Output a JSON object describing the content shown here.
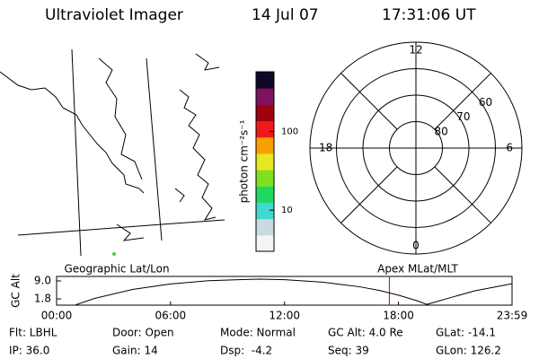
{
  "header": {
    "title": "Ultraviolet Imager",
    "date": "14 Jul 07",
    "time": "17:31:06 UT"
  },
  "chart_data": [
    {
      "type": "colorbar",
      "ylabel": "photon cm⁻²s⁻¹",
      "log": true,
      "ylim": [
        3,
        575
      ],
      "yticks": [
        10,
        100
      ],
      "colors": [
        "#f4f4f4",
        "#c8dce0",
        "#40d8d0",
        "#20d860",
        "#80e020",
        "#e8e820",
        "#f8a000",
        "#f01818",
        "#a00010",
        "#801060",
        "#100828"
      ]
    },
    {
      "type": "polar",
      "rlim": [
        90,
        50
      ],
      "rticks": [
        80,
        70,
        60
      ],
      "thetalim": [
        0,
        24
      ],
      "thetaticks": [
        0,
        6,
        12,
        18
      ]
    },
    {
      "type": "line",
      "ylabel": "GC Alt",
      "annotations": [
        "Geographic Lat/Lon",
        "Apex MLat/MLT"
      ],
      "xlim": [
        0,
        23.98
      ],
      "ylim": [
        -0.7,
        10.8
      ],
      "xticks": [
        {
          "value": 0,
          "label": "00:00"
        },
        {
          "value": 6,
          "label": "06:00"
        },
        {
          "value": 12,
          "label": "12:00"
        },
        {
          "value": 18,
          "label": "18:00"
        },
        {
          "value": 23.98,
          "label": "23:59"
        }
      ],
      "yticks": [
        {
          "value": 9,
          "label": "9.0"
        },
        1.8
      ],
      "x": [
        1,
        2,
        4,
        6,
        8,
        10,
        10.7,
        12,
        14,
        16,
        17,
        18,
        19,
        19.5,
        20.5,
        22,
        23.98
      ],
      "values": [
        -0.6,
        2.0,
        5.6,
        7.8,
        9.1,
        9.6,
        9.7,
        9.5,
        8.5,
        6.6,
        5.2,
        3.3,
        1.0,
        -0.4,
        1.8,
        5.0,
        7.9
      ],
      "color": "#000000",
      "marker_x": 17.52,
      "marker_color": "#e00000"
    }
  ],
  "footer": {
    "rows": [
      [
        "Flt: LBHL",
        "Door: Open",
        "Mode: Normal",
        "GC Alt: 4.0 Re",
        "GLat: -14.1"
      ],
      [
        "IP: 36.0",
        "Gain: 14",
        "Dsp:  -4.2",
        "Seq: 39",
        "GLon: 126.2"
      ]
    ]
  }
}
